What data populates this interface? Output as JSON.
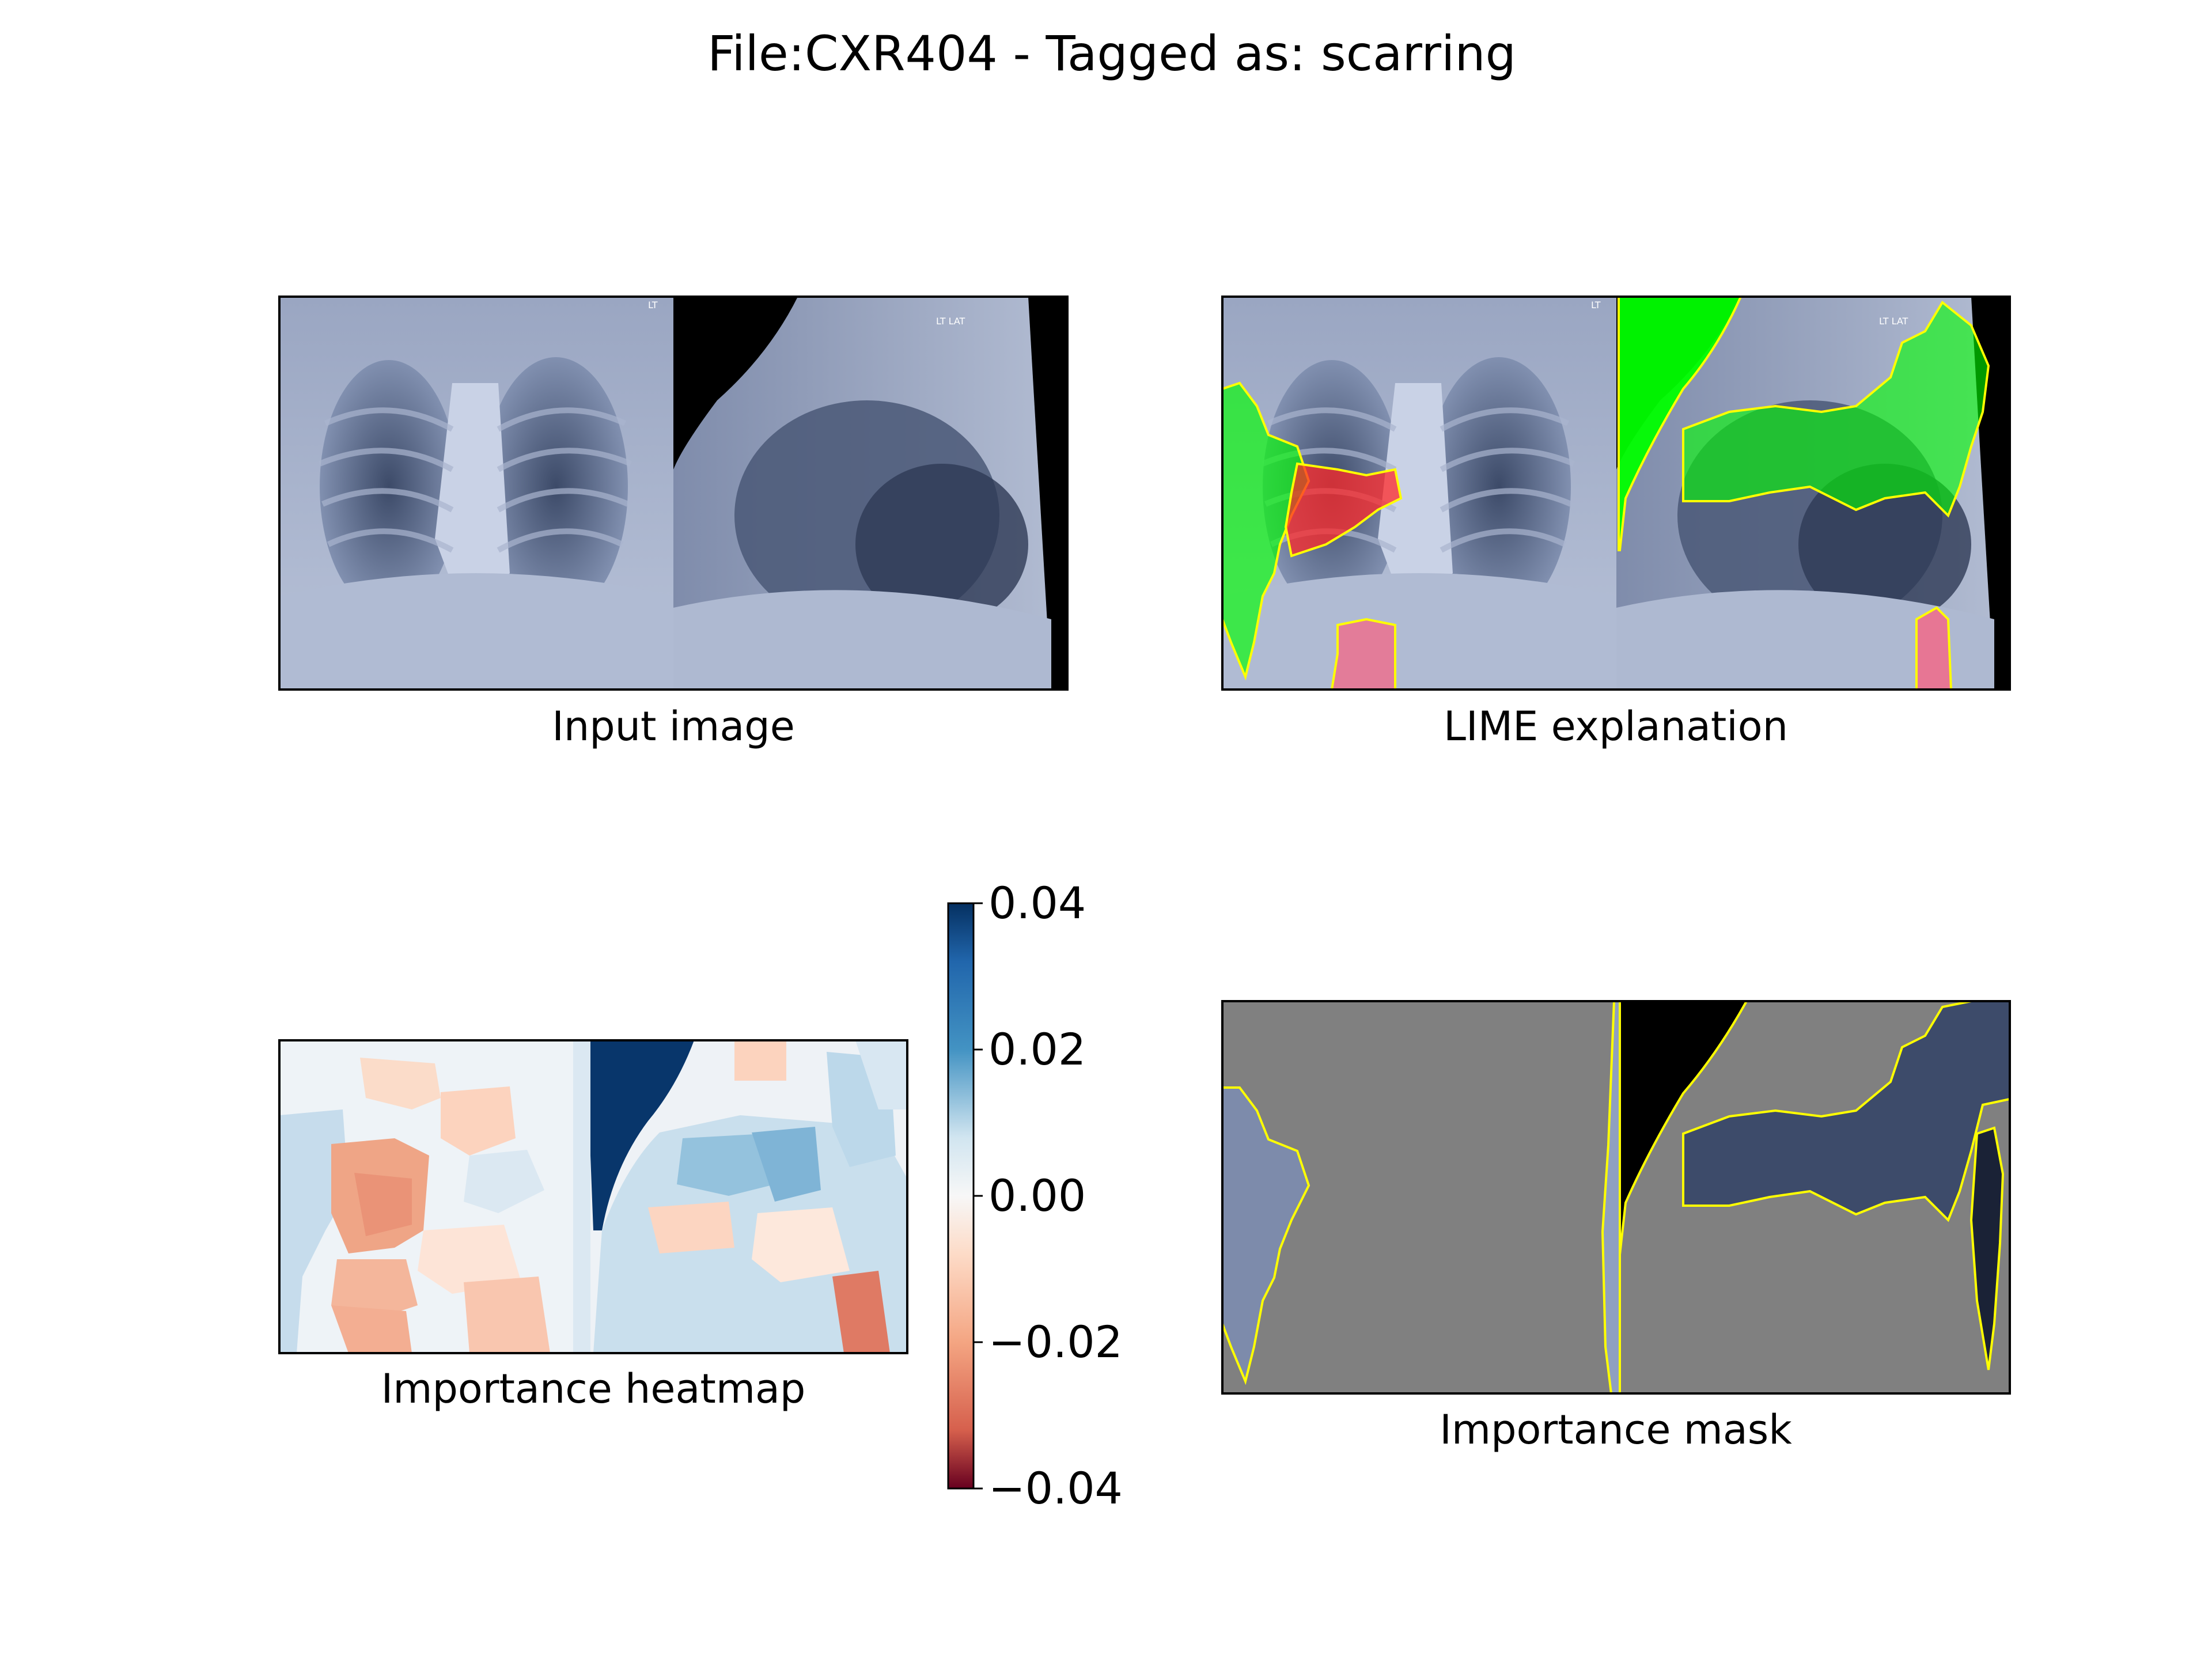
{
  "figure": {
    "title": "File:CXR404 - Tagged as: scarring"
  },
  "panels": {
    "input": {
      "caption": "Input image"
    },
    "lime": {
      "caption": "LIME explanation"
    },
    "heatmap": {
      "caption": "Importance heatmap"
    },
    "mask": {
      "caption": "Importance mask"
    }
  },
  "chart_data": {
    "type": "heatmap",
    "title": "File:CXR404 - Tagged as: scarring",
    "colorbar": {
      "colormap": "RdBu",
      "range": [
        -0.04,
        0.04
      ],
      "ticks": [
        0.04,
        0.02,
        0.0,
        -0.02,
        -0.04
      ],
      "tick_labels": [
        "0.04",
        "0.02",
        "0.00",
        "−0.02",
        "−0.04"
      ]
    },
    "colors": {
      "positive_region": "#00ff00",
      "negative_region": "#ff2a2a",
      "boundary": "#ffff00",
      "mask_background": "#808080"
    }
  }
}
